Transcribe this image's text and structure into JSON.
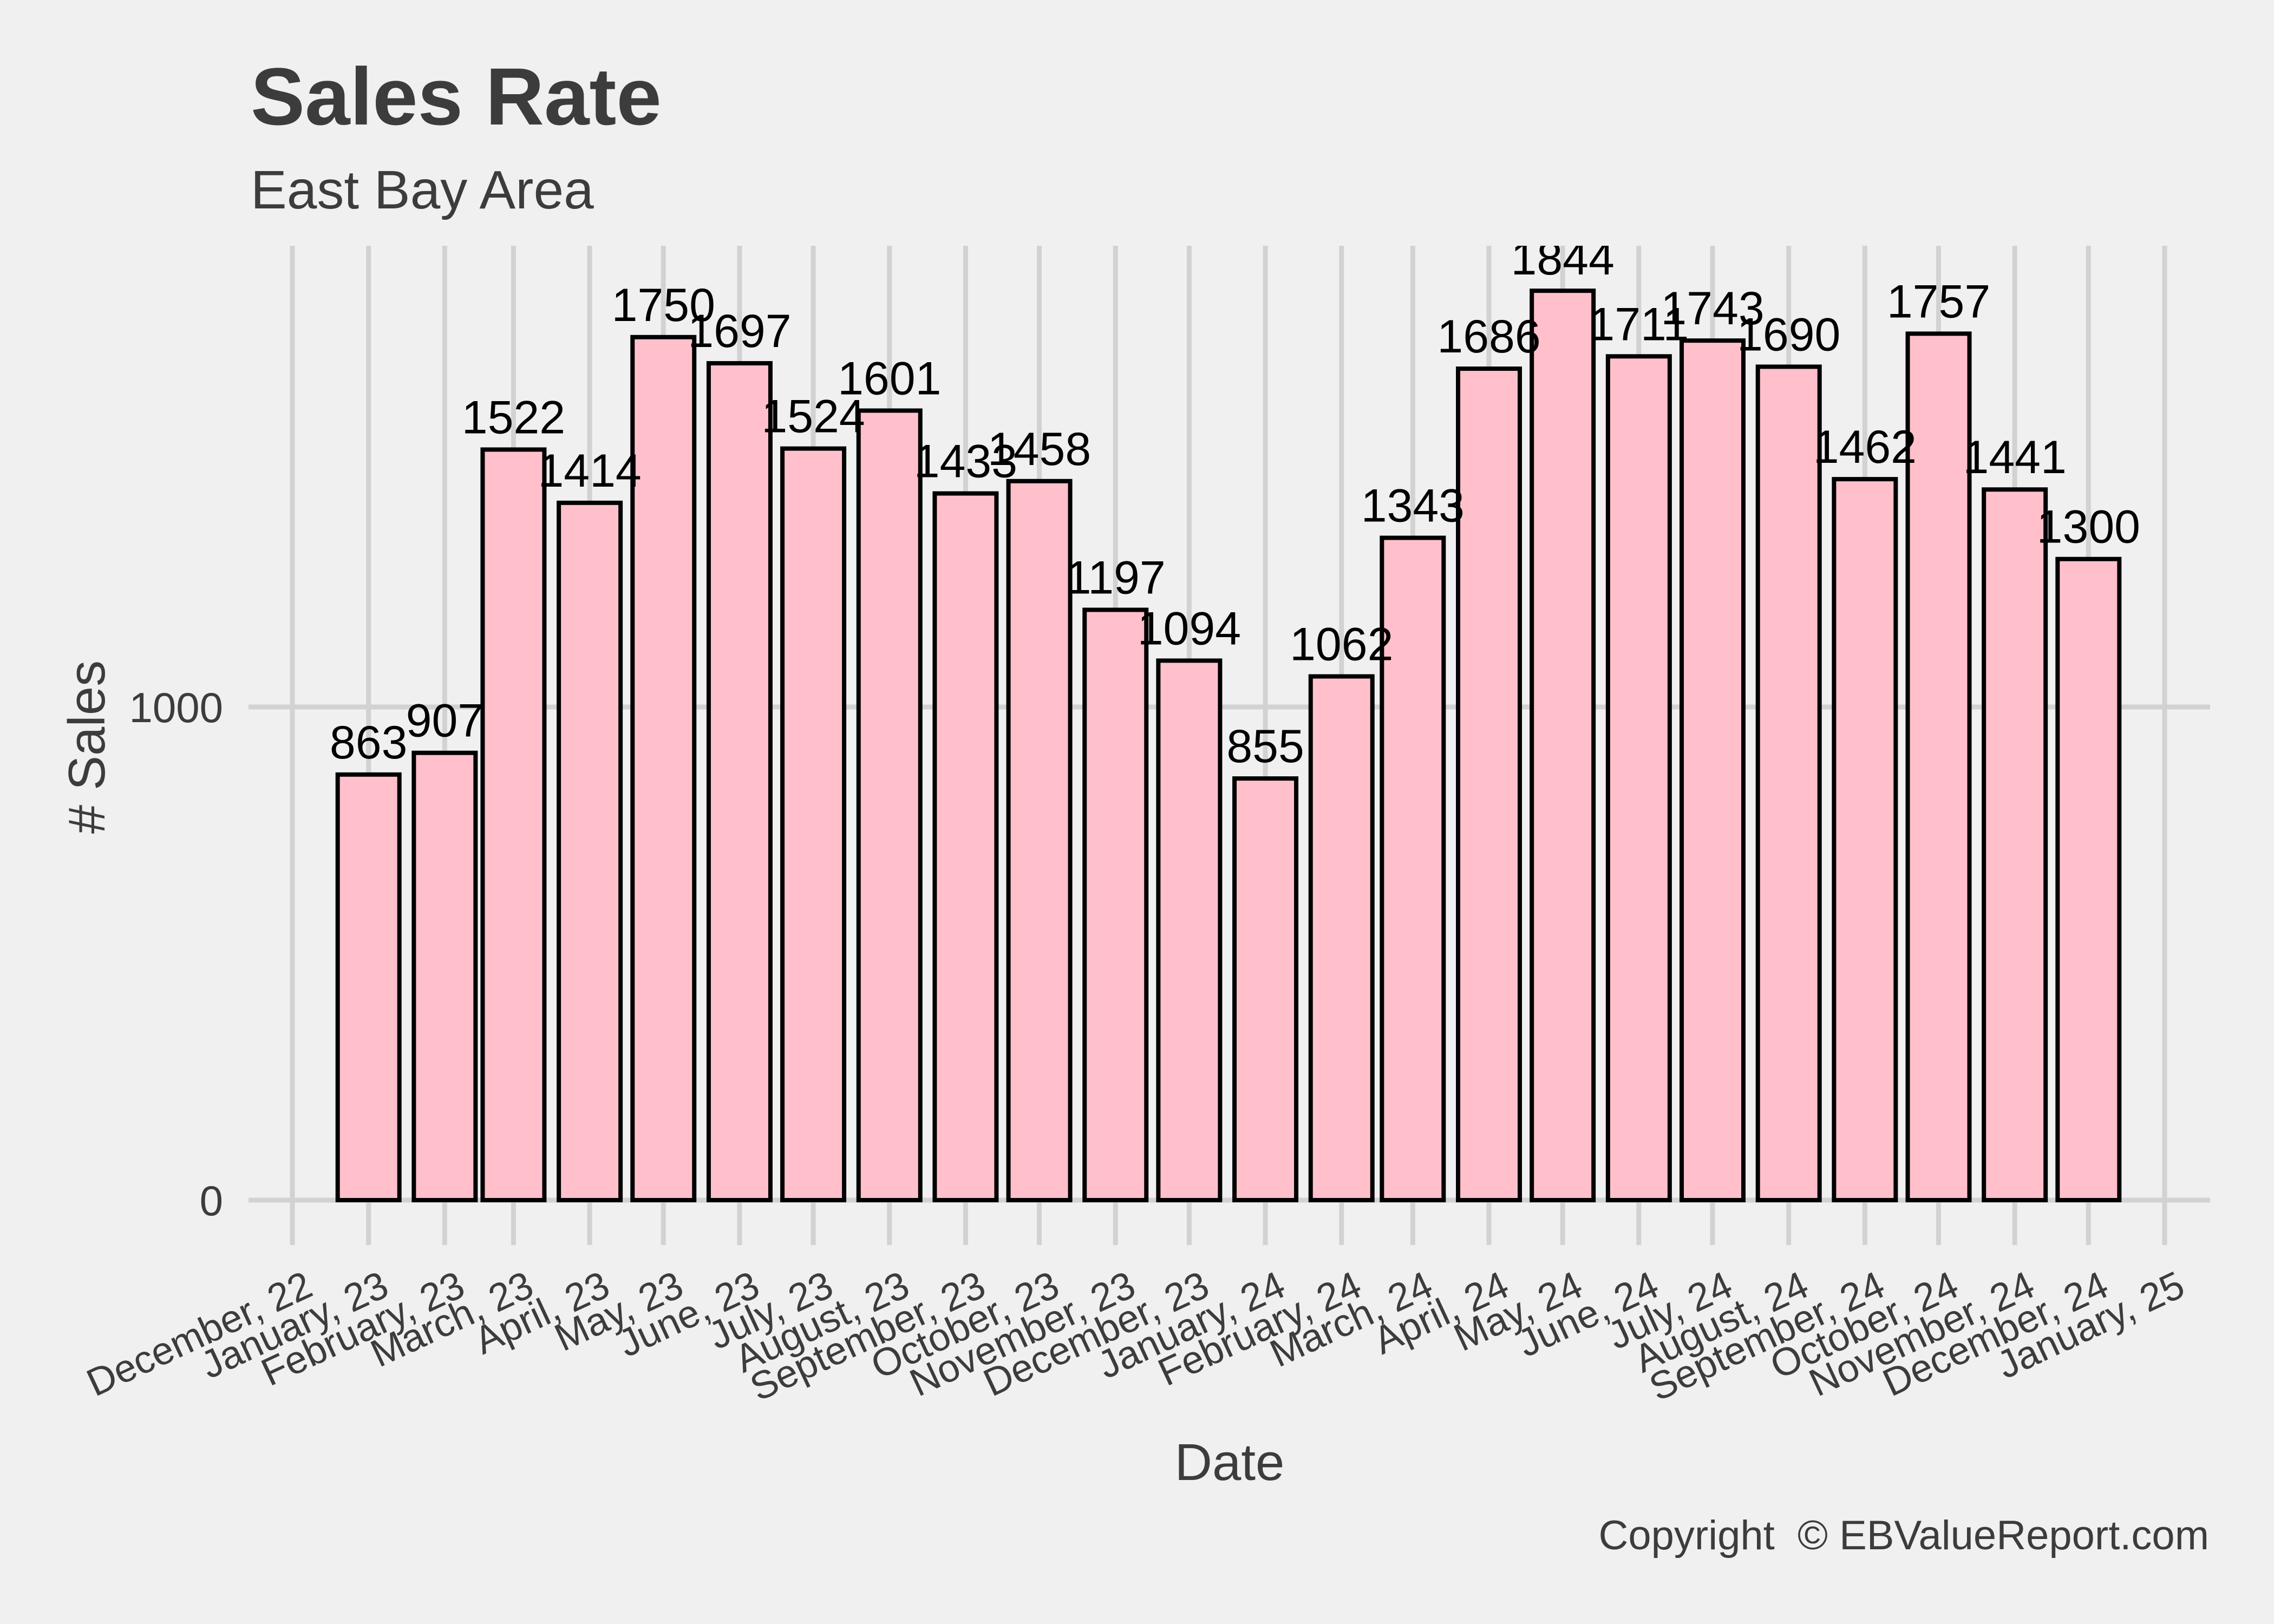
{
  "chart_data": {
    "type": "bar",
    "title": "Sales Rate",
    "subtitle": "East Bay Area",
    "xlabel": "Date",
    "ylabel": "# Sales",
    "caption": "Copyright  © EBValueReport.com",
    "ylim": [
      0,
      1870
    ],
    "y_ticks": [
      0,
      1000
    ],
    "y_tick_labels": [
      "0",
      "1000"
    ],
    "grid": true,
    "legend": "none",
    "x_tick_dates": [
      "2022-12-01",
      "2023-01-01",
      "2023-02-01",
      "2023-03-01",
      "2023-04-01",
      "2023-05-01",
      "2023-06-01",
      "2023-07-01",
      "2023-08-01",
      "2023-09-01",
      "2023-10-01",
      "2023-11-01",
      "2023-12-01",
      "2024-01-01",
      "2024-02-01",
      "2024-03-01",
      "2024-04-01",
      "2024-05-01",
      "2024-06-01",
      "2024-07-01",
      "2024-08-01",
      "2024-09-01",
      "2024-10-01",
      "2024-11-01",
      "2024-12-01",
      "2025-01-01"
    ],
    "x_tick_labels": [
      "December, 22",
      "January, 23",
      "February, 23",
      "March, 23",
      "April, 23",
      "May, 23",
      "June, 23",
      "July, 23",
      "August, 23",
      "September, 23",
      "October, 23",
      "November, 23",
      "December, 23",
      "January, 24",
      "February, 24",
      "March, 24",
      "April, 24",
      "May, 24",
      "June, 24",
      "July, 24",
      "August, 24",
      "September, 24",
      "October, 24",
      "November, 24",
      "December, 24",
      "January, 25"
    ],
    "categories": [
      "2023-01-01",
      "2023-02-01",
      "2023-03-01",
      "2023-04-01",
      "2023-05-01",
      "2023-06-01",
      "2023-07-01",
      "2023-08-01",
      "2023-09-01",
      "2023-10-01",
      "2023-11-01",
      "2023-12-01",
      "2024-01-01",
      "2024-02-01",
      "2024-03-01",
      "2024-04-01",
      "2024-05-01",
      "2024-06-01",
      "2024-07-01",
      "2024-08-01",
      "2024-09-01",
      "2024-10-01",
      "2024-11-01",
      "2024-12-01"
    ],
    "values": [
      863,
      907,
      1522,
      1414,
      1750,
      1697,
      1524,
      1601,
      1433,
      1458,
      1197,
      1094,
      855,
      1062,
      1343,
      1686,
      1844,
      1711,
      1743,
      1690,
      1462,
      1757,
      1441,
      1300
    ],
    "bar_fill": "#FFC0CB",
    "bar_outline": "#000000",
    "background": "#F0F0F0",
    "grid_color": "#D2D2D2",
    "text_color": "#3C3C3C"
  }
}
